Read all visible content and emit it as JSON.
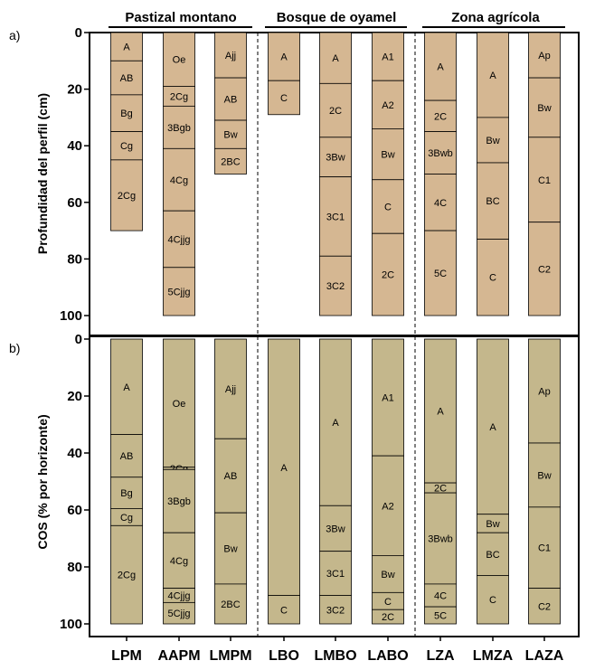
{
  "groups": [
    {
      "title": "Pastizal montano"
    },
    {
      "title": "Bosque de oyamel"
    },
    {
      "title": "Zona agrícola"
    }
  ],
  "categories": [
    "LPM",
    "AAPM",
    "LMPM",
    "LBO",
    "LMBO",
    "LABO",
    "LZA",
    "LMZA",
    "LAZA"
  ],
  "colors": {
    "panel_a": "#d5b792",
    "panel_b": "#c4b78c",
    "stroke": "#000000"
  },
  "chart_data": [
    {
      "panel": "a)",
      "type": "bar",
      "ylabel": "Profundidad del perfil (cm)",
      "ylim": [
        0,
        100
      ],
      "yticks": [
        0,
        20,
        40,
        60,
        80,
        100
      ],
      "inverted_y": true,
      "categories": [
        "LPM",
        "AAPM",
        "LMPM",
        "LBO",
        "LMBO",
        "LABO",
        "LZA",
        "LMZA",
        "LAZA"
      ],
      "profiles": [
        {
          "category": "LPM",
          "horizons": [
            {
              "name": "A",
              "top": 0,
              "bottom": 10
            },
            {
              "name": "AB",
              "top": 10,
              "bottom": 22
            },
            {
              "name": "Bg",
              "top": 22,
              "bottom": 35
            },
            {
              "name": "Cg",
              "top": 35,
              "bottom": 45
            },
            {
              "name": "2Cg",
              "top": 45,
              "bottom": 70
            }
          ]
        },
        {
          "category": "AAPM",
          "horizons": [
            {
              "name": "Oe",
              "top": 0,
              "bottom": 19
            },
            {
              "name": "2Cg",
              "top": 19,
              "bottom": 26
            },
            {
              "name": "3Bgb",
              "top": 26,
              "bottom": 41
            },
            {
              "name": "4Cg",
              "top": 41,
              "bottom": 63
            },
            {
              "name": "4Cjjg",
              "top": 63,
              "bottom": 83
            },
            {
              "name": "5Cjjg",
              "top": 83,
              "bottom": 100
            }
          ]
        },
        {
          "category": "LMPM",
          "horizons": [
            {
              "name": "Ajj",
              "top": 0,
              "bottom": 16
            },
            {
              "name": "AB",
              "top": 16,
              "bottom": 31
            },
            {
              "name": "Bw",
              "top": 31,
              "bottom": 41
            },
            {
              "name": "2BC",
              "top": 41,
              "bottom": 50
            }
          ]
        },
        {
          "category": "LBO",
          "horizons": [
            {
              "name": "A",
              "top": 0,
              "bottom": 17
            },
            {
              "name": "C",
              "top": 17,
              "bottom": 29
            }
          ]
        },
        {
          "category": "LMBO",
          "horizons": [
            {
              "name": "A",
              "top": 0,
              "bottom": 18
            },
            {
              "name": "2C",
              "top": 18,
              "bottom": 37
            },
            {
              "name": "3Bw",
              "top": 37,
              "bottom": 51
            },
            {
              "name": "3C1",
              "top": 51,
              "bottom": 79
            },
            {
              "name": "3C2",
              "top": 79,
              "bottom": 100
            }
          ]
        },
        {
          "category": "LABO",
          "horizons": [
            {
              "name": "A1",
              "top": 0,
              "bottom": 17
            },
            {
              "name": "A2",
              "top": 17,
              "bottom": 34
            },
            {
              "name": "Bw",
              "top": 34,
              "bottom": 52
            },
            {
              "name": "C",
              "top": 52,
              "bottom": 71
            },
            {
              "name": "2C",
              "top": 71,
              "bottom": 100
            }
          ]
        },
        {
          "category": "LZA",
          "horizons": [
            {
              "name": "A",
              "top": 0,
              "bottom": 24
            },
            {
              "name": "2C",
              "top": 24,
              "bottom": 35
            },
            {
              "name": "3Bwb",
              "top": 35,
              "bottom": 50
            },
            {
              "name": "4C",
              "top": 50,
              "bottom": 70
            },
            {
              "name": "5C",
              "top": 70,
              "bottom": 100
            }
          ]
        },
        {
          "category": "LMZA",
          "horizons": [
            {
              "name": "A",
              "top": 0,
              "bottom": 30
            },
            {
              "name": "Bw",
              "top": 30,
              "bottom": 46
            },
            {
              "name": "BC",
              "top": 46,
              "bottom": 73
            },
            {
              "name": "C",
              "top": 73,
              "bottom": 100
            }
          ]
        },
        {
          "category": "LAZA",
          "horizons": [
            {
              "name": "Ap",
              "top": 0,
              "bottom": 16
            },
            {
              "name": "Bw",
              "top": 16,
              "bottom": 37
            },
            {
              "name": "C1",
              "top": 37,
              "bottom": 67
            },
            {
              "name": "C2",
              "top": 67,
              "bottom": 100
            }
          ]
        }
      ]
    },
    {
      "panel": "b)",
      "type": "bar",
      "ylabel": "COS (% por horizonte)",
      "ylim": [
        0,
        100
      ],
      "yticks": [
        0,
        20,
        40,
        60,
        80,
        100
      ],
      "inverted_y": true,
      "categories": [
        "LPM",
        "AAPM",
        "LMPM",
        "LBO",
        "LMBO",
        "LABO",
        "LZA",
        "LMZA",
        "LAZA"
      ],
      "profiles": [
        {
          "category": "LPM",
          "horizons": [
            {
              "name": "A",
              "top": 0,
              "bottom": 33.5
            },
            {
              "name": "AB",
              "top": 33.5,
              "bottom": 48.5
            },
            {
              "name": "Bg",
              "top": 48.5,
              "bottom": 59.5
            },
            {
              "name": "Cg",
              "top": 59.5,
              "bottom": 65.5
            },
            {
              "name": "2Cg",
              "top": 65.5,
              "bottom": 100
            }
          ]
        },
        {
          "category": "AAPM",
          "horizons": [
            {
              "name": "Oe",
              "top": 0,
              "bottom": 45
            },
            {
              "name": "2Cg",
              "top": 45,
              "bottom": 45.8
            },
            {
              "name": "3Bgb",
              "top": 45.8,
              "bottom": 68
            },
            {
              "name": "4Cg",
              "top": 68,
              "bottom": 87.5
            },
            {
              "name": "4Cjjg",
              "top": 87.5,
              "bottom": 92.5
            },
            {
              "name": "5Cjjg",
              "top": 92.5,
              "bottom": 100
            }
          ]
        },
        {
          "category": "LMPM",
          "horizons": [
            {
              "name": "Ajj",
              "top": 0,
              "bottom": 35
            },
            {
              "name": "AB",
              "top": 35,
              "bottom": 61
            },
            {
              "name": "Bw",
              "top": 61,
              "bottom": 86
            },
            {
              "name": "2BC",
              "top": 86,
              "bottom": 100
            }
          ]
        },
        {
          "category": "LBO",
          "horizons": [
            {
              "name": "A",
              "top": 0,
              "bottom": 90
            },
            {
              "name": "C",
              "top": 90,
              "bottom": 100
            }
          ]
        },
        {
          "category": "LMBO",
          "horizons": [
            {
              "name": "A",
              "top": 0,
              "bottom": 58.5
            },
            {
              "name": "3Bw",
              "top": 58.5,
              "bottom": 74.5
            },
            {
              "name": "3C1",
              "top": 74.5,
              "bottom": 90
            },
            {
              "name": "3C2",
              "top": 90,
              "bottom": 100
            }
          ]
        },
        {
          "category": "LABO",
          "horizons": [
            {
              "name": "A1",
              "top": 0,
              "bottom": 41
            },
            {
              "name": "A2",
              "top": 41,
              "bottom": 76
            },
            {
              "name": "Bw",
              "top": 76,
              "bottom": 89
            },
            {
              "name": "C",
              "top": 89,
              "bottom": 95
            },
            {
              "name": "2C",
              "top": 95,
              "bottom": 100
            }
          ]
        },
        {
          "category": "LZA",
          "horizons": [
            {
              "name": "A",
              "top": 0,
              "bottom": 50.5
            },
            {
              "name": "2C",
              "top": 50.5,
              "bottom": 54
            },
            {
              "name": "3Bwb",
              "top": 54,
              "bottom": 86
            },
            {
              "name": "4C",
              "top": 86,
              "bottom": 94
            },
            {
              "name": "5C",
              "top": 94,
              "bottom": 100
            }
          ]
        },
        {
          "category": "LMZA",
          "horizons": [
            {
              "name": "A",
              "top": 0,
              "bottom": 61.5
            },
            {
              "name": "Bw",
              "top": 61.5,
              "bottom": 68
            },
            {
              "name": "BC",
              "top": 68,
              "bottom": 83
            },
            {
              "name": "C",
              "top": 83,
              "bottom": 100
            }
          ]
        },
        {
          "category": "LAZA",
          "horizons": [
            {
              "name": "Ap",
              "top": 0,
              "bottom": 36.5
            },
            {
              "name": "Bw",
              "top": 36.5,
              "bottom": 59
            },
            {
              "name": "C1",
              "top": 59,
              "bottom": 87.5
            },
            {
              "name": "C2",
              "top": 87.5,
              "bottom": 100
            }
          ]
        }
      ]
    }
  ]
}
